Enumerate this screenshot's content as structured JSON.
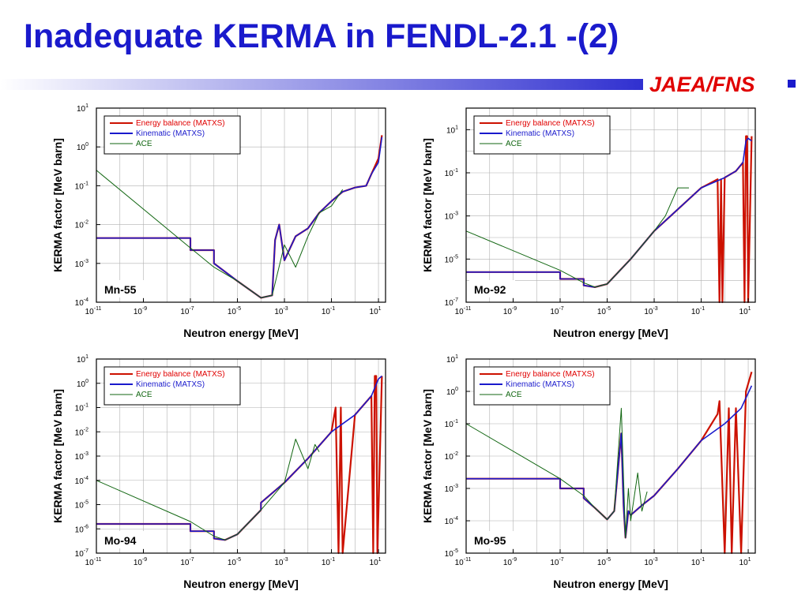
{
  "slide": {
    "title": "Inadequate KERMA in FENDL-2.1 -(2)",
    "organization": "JAEA/FNS",
    "colors": {
      "title": "#1a1acc",
      "organization": "#e00000",
      "energy_balance": "#cc1100",
      "kinematic": "#1a1acc",
      "ace": "#116611"
    }
  },
  "chart_data": [
    {
      "type": "line",
      "label": "Mn-55",
      "xlabel": "Neutron energy [MeV]",
      "ylabel": "KERMA factor [MeV barn]",
      "xscale": "log",
      "yscale": "log",
      "xlim": [
        1e-11,
        20
      ],
      "ylim": [
        0.0001,
        10
      ],
      "x_ticks": [
        -11,
        -9,
        -7,
        -5,
        -3,
        -1,
        1
      ],
      "y_ticks": [
        -4,
        -3,
        -2,
        -1,
        0,
        1
      ],
      "grid": true,
      "legend_position": "top-left",
      "series": [
        {
          "name": "Energy balance (MATXS)",
          "color": "#cc1100",
          "x": [
            1e-11,
            1e-07,
            1e-07,
            1e-06,
            1e-06,
            1e-05,
            0.0001,
            0.0003,
            0.0004,
            0.0006,
            0.001,
            0.003,
            0.01,
            0.03,
            0.1,
            0.3,
            1,
            3,
            5,
            10,
            14
          ],
          "y": [
            0.0045,
            0.0045,
            0.0022,
            0.0022,
            0.001,
            0.00035,
            0.00013,
            0.00015,
            0.004,
            0.01,
            0.0012,
            0.005,
            0.008,
            0.02,
            0.04,
            0.07,
            0.09,
            0.1,
            0.2,
            0.5,
            2
          ]
        },
        {
          "name": "Kinematic (MATXS)",
          "color": "#1a1acc",
          "x": [
            1e-11,
            1e-07,
            1e-07,
            1e-06,
            1e-06,
            1e-05,
            0.0001,
            0.0003,
            0.0004,
            0.0006,
            0.001,
            0.003,
            0.01,
            0.03,
            0.1,
            0.3,
            1,
            3,
            5,
            10,
            14
          ],
          "y": [
            0.0045,
            0.0045,
            0.0022,
            0.0022,
            0.001,
            0.00035,
            0.00013,
            0.00015,
            0.004,
            0.01,
            0.0012,
            0.005,
            0.008,
            0.02,
            0.04,
            0.07,
            0.09,
            0.1,
            0.2,
            0.4,
            1.8
          ]
        },
        {
          "name": "ACE",
          "color": "#116611",
          "x": [
            1e-11,
            1e-07,
            1e-06,
            1e-05,
            0.0001,
            0.0003,
            0.001,
            0.003,
            0.01,
            0.03,
            0.1,
            0.3
          ],
          "y": [
            0.25,
            0.0025,
            0.0008,
            0.00035,
            0.00013,
            0.00015,
            0.003,
            0.0008,
            0.005,
            0.02,
            0.03,
            0.08
          ]
        }
      ]
    },
    {
      "type": "line",
      "label": "Mo-92",
      "xlabel": "Neutron energy [MeV]",
      "ylabel": "KERMA factor [MeV barn]",
      "xscale": "log",
      "yscale": "log",
      "xlim": [
        1e-11,
        20
      ],
      "ylim": [
        1e-07,
        100
      ],
      "x_ticks": [
        -11,
        -9,
        -7,
        -5,
        -3,
        -1,
        1
      ],
      "y_ticks": [
        -7,
        -5,
        -3,
        -1,
        1
      ],
      "grid": true,
      "legend_position": "top-left",
      "series": [
        {
          "name": "Energy balance (MATXS)",
          "color": "#cc1100",
          "x": [
            1e-11,
            1e-07,
            1e-07,
            1e-06,
            1e-06,
            3e-06,
            1e-05,
            0.0001,
            0.001,
            0.01,
            0.1,
            0.5,
            0.6,
            0.7,
            0.8,
            1,
            3,
            6,
            7,
            8,
            9,
            10,
            14
          ],
          "y": [
            2.5e-06,
            2.5e-06,
            1.2e-06,
            1.2e-06,
            6e-07,
            5e-07,
            7e-07,
            1e-05,
            0.0002,
            0.002,
            0.02,
            0.05,
            1e-07,
            0.05,
            1e-07,
            0.06,
            0.12,
            0.3,
            1e-07,
            5,
            5,
            1e-07,
            5
          ]
        },
        {
          "name": "Kinematic (MATXS)",
          "color": "#1a1acc",
          "x": [
            1e-11,
            1e-07,
            1e-07,
            1e-06,
            1e-06,
            3e-06,
            1e-05,
            0.0001,
            0.001,
            0.01,
            0.1,
            1,
            3,
            6,
            8,
            10,
            14
          ],
          "y": [
            2.5e-06,
            2.5e-06,
            1.2e-06,
            1.2e-06,
            6e-07,
            5e-07,
            7e-07,
            1e-05,
            0.0002,
            0.002,
            0.02,
            0.06,
            0.12,
            0.3,
            3,
            4,
            3
          ]
        },
        {
          "name": "ACE",
          "color": "#116611",
          "x": [
            1e-11,
            1e-07,
            1e-06,
            3e-06,
            1e-05,
            0.0001,
            0.001,
            0.003,
            0.01,
            0.03
          ],
          "y": [
            0.0002,
            3e-06,
            8e-07,
            5e-07,
            7e-07,
            1e-05,
            0.0002,
            0.001,
            0.02,
            0.02
          ]
        }
      ]
    },
    {
      "type": "line",
      "label": "Mo-94",
      "xlabel": "Neutron energy [MeV]",
      "ylabel": "KERMA factor [MeV barn]",
      "xscale": "log",
      "yscale": "log",
      "xlim": [
        1e-11,
        20
      ],
      "ylim": [
        1e-07,
        10
      ],
      "x_ticks": [
        -11,
        -9,
        -7,
        -5,
        -3,
        -1,
        1
      ],
      "y_ticks": [
        -7,
        -6,
        -5,
        -4,
        -3,
        -2,
        -1,
        0,
        1
      ],
      "grid": true,
      "legend_position": "top-left",
      "series": [
        {
          "name": "Energy balance (MATXS)",
          "color": "#cc1100",
          "x": [
            1e-11,
            1e-07,
            1e-07,
            1e-06,
            1e-06,
            3e-06,
            1e-05,
            0.0001,
            0.0001,
            0.001,
            0.01,
            0.1,
            0.15,
            0.2,
            0.25,
            0.3,
            1,
            5,
            6,
            7,
            8,
            9,
            14
          ],
          "y": [
            1.6e-06,
            1.6e-06,
            8e-07,
            8e-07,
            4e-07,
            3.5e-07,
            6e-07,
            6e-06,
            1.2e-05,
            8e-05,
            0.0008,
            0.01,
            0.1,
            1e-07,
            0.1,
            1e-07,
            0.05,
            0.3,
            1e-07,
            2,
            2,
            1e-07,
            2
          ]
        },
        {
          "name": "Kinematic (MATXS)",
          "color": "#1a1acc",
          "x": [
            1e-11,
            1e-07,
            1e-07,
            1e-06,
            1e-06,
            3e-06,
            1e-05,
            0.0001,
            0.0001,
            0.001,
            0.01,
            0.1,
            1,
            5,
            10,
            14
          ],
          "y": [
            1.6e-06,
            1.6e-06,
            8e-07,
            8e-07,
            4e-07,
            3.5e-07,
            6e-07,
            6e-06,
            1.2e-05,
            8e-05,
            0.0008,
            0.01,
            0.05,
            0.3,
            1.5,
            2
          ]
        },
        {
          "name": "ACE",
          "color": "#116611",
          "x": [
            1e-11,
            1e-07,
            1e-06,
            3e-06,
            1e-05,
            0.0001,
            0.001,
            0.003,
            0.01,
            0.02,
            0.03
          ],
          "y": [
            0.0001,
            2e-06,
            5e-07,
            3.5e-07,
            6e-07,
            6e-06,
            8e-05,
            0.005,
            0.0003,
            0.003,
            0.0015
          ]
        }
      ]
    },
    {
      "type": "line",
      "label": "Mo-95",
      "xlabel": "Neutron energy [MeV]",
      "ylabel": "KERMA factor [MeV barn]",
      "xscale": "log",
      "yscale": "log",
      "xlim": [
        1e-11,
        20
      ],
      "ylim": [
        1e-05,
        10
      ],
      "x_ticks": [
        -11,
        -9,
        -7,
        -5,
        -3,
        -1,
        1
      ],
      "y_ticks": [
        -5,
        -4,
        -3,
        -2,
        -1,
        0,
        1
      ],
      "grid": true,
      "legend_position": "top-left",
      "series": [
        {
          "name": "Energy balance (MATXS)",
          "color": "#cc1100",
          "x": [
            1e-11,
            1e-07,
            1e-07,
            1e-06,
            1e-06,
            3e-06,
            1e-05,
            2e-05,
            4e-05,
            5e-05,
            6e-05,
            8e-05,
            0.0001,
            0.0003,
            0.001,
            0.01,
            0.1,
            0.5,
            0.6,
            1,
            1.5,
            2,
            3,
            5,
            8,
            14
          ],
          "y": [
            0.002,
            0.002,
            0.001,
            0.001,
            0.0005,
            0.00025,
            0.00011,
            0.0002,
            0.05,
            0.0003,
            3e-05,
            0.0002,
            0.00015,
            0.0003,
            0.0006,
            0.004,
            0.03,
            0.2,
            0.5,
            1e-05,
            0.3,
            1e-05,
            0.3,
            1e-05,
            1,
            4
          ]
        },
        {
          "name": "Kinematic (MATXS)",
          "color": "#1a1acc",
          "x": [
            1e-11,
            1e-07,
            1e-07,
            1e-06,
            1e-06,
            3e-06,
            1e-05,
            2e-05,
            4e-05,
            5e-05,
            6e-05,
            8e-05,
            0.0001,
            0.0003,
            0.001,
            0.01,
            0.1,
            1,
            5,
            14
          ],
          "y": [
            0.002,
            0.002,
            0.001,
            0.001,
            0.0005,
            0.00025,
            0.00011,
            0.0002,
            0.05,
            0.0003,
            3e-05,
            0.0002,
            0.00015,
            0.0003,
            0.0006,
            0.004,
            0.03,
            0.1,
            0.3,
            1.5
          ]
        },
        {
          "name": "ACE",
          "color": "#116611",
          "x": [
            1e-11,
            1e-07,
            1e-06,
            3e-06,
            1e-05,
            2e-05,
            4e-05,
            6e-05,
            8e-05,
            0.0001,
            0.0002,
            0.0003,
            0.0005
          ],
          "y": [
            0.1,
            0.002,
            0.0006,
            0.00025,
            0.00011,
            0.0002,
            0.3,
            3e-05,
            0.001,
            0.0001,
            0.003,
            0.0002,
            0.0008
          ]
        }
      ]
    }
  ]
}
